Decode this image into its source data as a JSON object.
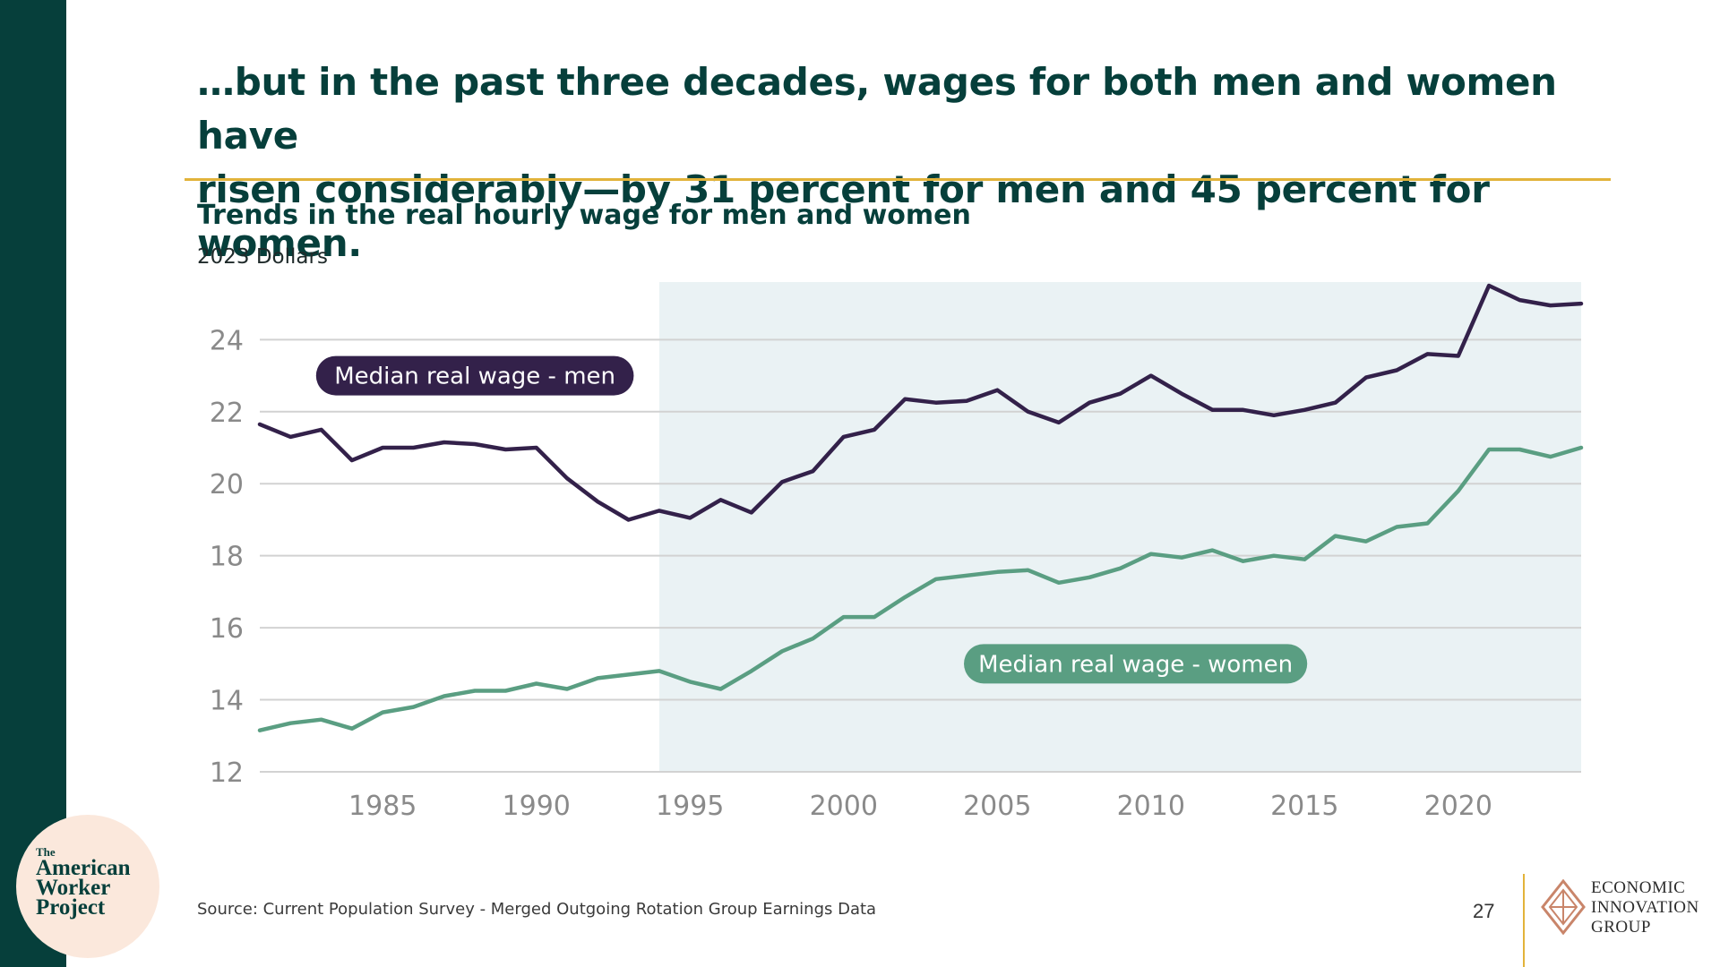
{
  "headline": {
    "line1": "…but in the past three decades, wages for both men and women have",
    "line2": "risen considerably—by 31 percent for men and 45 percent for women."
  },
  "chart_title": "Trends in the real hourly wage for men and women",
  "chart_unit": "2023 Dollars",
  "source": "Source: Current Population Survey - Merged Outgoing Rotation Group Earnings Data",
  "page_number": "27",
  "brand_left": {
    "the": "The",
    "line1": "American",
    "line2": "Worker",
    "line3": "Project"
  },
  "brand_right": {
    "line1": "ECONOMIC",
    "line2": "INNOVATION",
    "line3": "GROUP"
  },
  "colors": {
    "men": "#33214a",
    "women": "#5a9e82",
    "shade": "#eaf2f4",
    "grid": "#d2d2d2",
    "accent": "#e2b33a",
    "dark_green": "#063f3b"
  },
  "chart_data": {
    "type": "line",
    "xlim": [
      1981,
      2024
    ],
    "ylim": [
      12,
      25.6
    ],
    "x_ticks": [
      1985,
      1990,
      1995,
      2000,
      2005,
      2010,
      2015,
      2020
    ],
    "y_ticks": [
      12,
      14,
      16,
      18,
      20,
      22,
      24
    ],
    "shaded_range": [
      1994,
      2024
    ],
    "x": [
      1981,
      1982,
      1983,
      1984,
      1985,
      1986,
      1987,
      1988,
      1989,
      1990,
      1991,
      1992,
      1993,
      1994,
      1995,
      1996,
      1997,
      1998,
      1999,
      2000,
      2001,
      2002,
      2003,
      2004,
      2005,
      2006,
      2007,
      2008,
      2009,
      2010,
      2011,
      2012,
      2013,
      2014,
      2015,
      2016,
      2017,
      2018,
      2019,
      2020,
      2021,
      2022,
      2023,
      2024
    ],
    "series": [
      {
        "name": "Median real wage - men",
        "values": [
          21.65,
          21.3,
          21.5,
          20.65,
          21.0,
          21.0,
          21.15,
          21.1,
          20.95,
          21.0,
          20.15,
          19.5,
          19.0,
          19.25,
          19.05,
          19.55,
          19.2,
          20.05,
          20.35,
          21.3,
          21.5,
          22.35,
          22.25,
          22.3,
          22.6,
          22.0,
          21.7,
          22.25,
          22.5,
          23.0,
          22.5,
          22.05,
          22.05,
          21.9,
          22.05,
          22.25,
          22.95,
          23.15,
          23.6,
          23.55,
          25.5,
          25.1,
          24.95,
          25.0
        ]
      },
      {
        "name": "Median real wage - women",
        "values": [
          13.15,
          13.35,
          13.45,
          13.2,
          13.65,
          13.8,
          14.1,
          14.25,
          14.25,
          14.45,
          14.3,
          14.6,
          14.7,
          14.8,
          14.5,
          14.3,
          14.8,
          15.35,
          15.7,
          16.3,
          16.3,
          16.85,
          17.35,
          17.45,
          17.55,
          17.6,
          17.25,
          17.4,
          17.65,
          18.05,
          17.95,
          18.15,
          17.85,
          18.0,
          17.9,
          18.55,
          18.4,
          18.8,
          18.9,
          19.8,
          20.95,
          20.95,
          20.75,
          21.0
        ]
      }
    ],
    "labels": [
      {
        "series": 0,
        "text": "Median real wage - men",
        "x": 1988,
        "y": 23.0
      },
      {
        "series": 1,
        "text": "Median real wage - women",
        "x": 2009.5,
        "y": 15.0
      }
    ]
  }
}
